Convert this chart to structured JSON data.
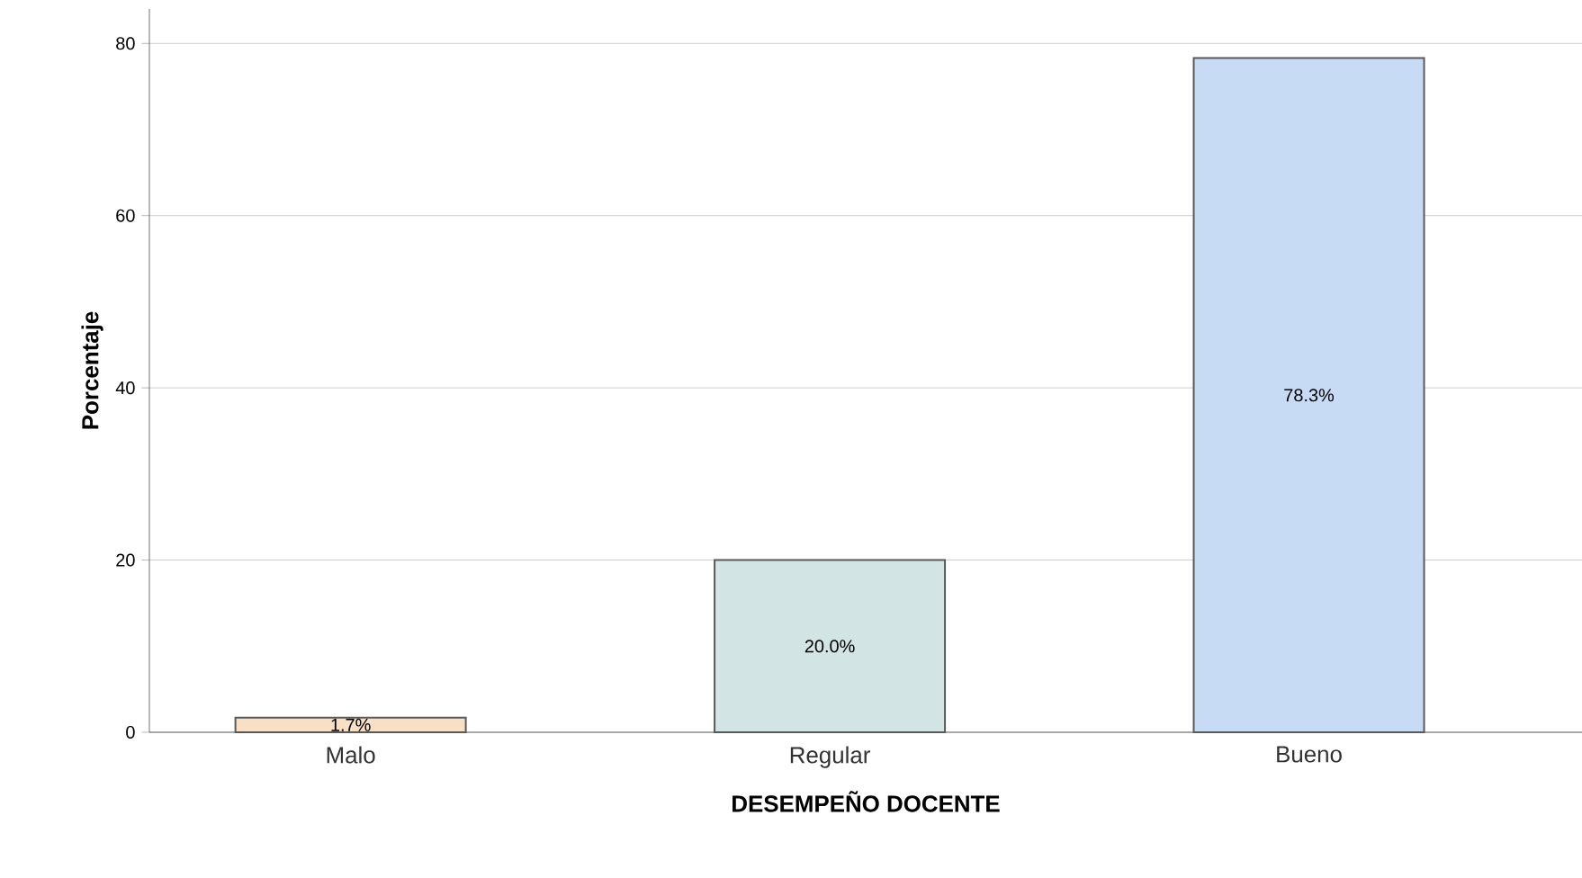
{
  "chart_data": {
    "type": "bar",
    "xlabel": "DESEMPEÑO DOCENTE",
    "ylabel": "Porcentaje",
    "categories": [
      "Malo",
      "Regular",
      "Bueno"
    ],
    "values": [
      1.7,
      20.0,
      78.3
    ],
    "value_labels": [
      "1.7%",
      "20.0%",
      "78.3%"
    ],
    "colors": [
      "#f7e0c3",
      "#d2e4e4",
      "#c7dcf4"
    ],
    "ylim": [
      0,
      84
    ],
    "yticks": [
      0,
      20,
      40,
      60,
      80
    ],
    "grid": "y"
  }
}
